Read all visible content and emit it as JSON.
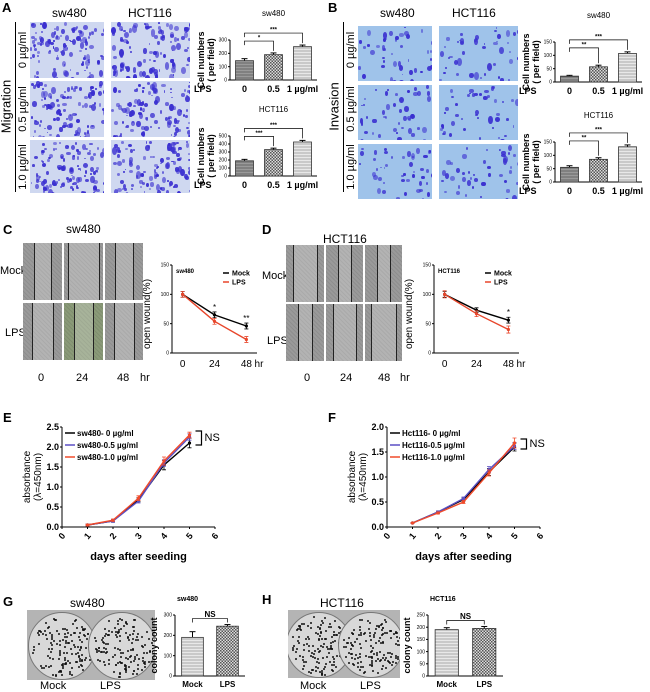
{
  "panels": {
    "A": {
      "letter": "A",
      "col1": "sw480",
      "col2": "HCT116",
      "side": "Migration",
      "rows": [
        "0 µg/ml",
        "0.5 µg/ml",
        "1.0 µg/ml"
      ]
    },
    "B": {
      "letter": "B",
      "col1": "sw480",
      "col2": "HCT116",
      "side": "Invasion",
      "rows": [
        "0 µg/ml",
        "0.5 µg/ml",
        "1.0 µg/ml"
      ]
    },
    "C": {
      "letter": "C",
      "title": "sw480",
      "rows": [
        "Mock",
        "LPS"
      ],
      "times": [
        "0",
        "24",
        "48",
        "hr"
      ]
    },
    "D": {
      "letter": "D",
      "title": "HCT116",
      "rows": [
        "Mock",
        "LPS"
      ],
      "times": [
        "0",
        "24",
        "48",
        "hr"
      ]
    },
    "E": {
      "letter": "E"
    },
    "F": {
      "letter": "F"
    },
    "G": {
      "letter": "G",
      "title": "sw480",
      "labels": [
        "Mock",
        "LPS"
      ]
    },
    "H": {
      "letter": "H",
      "title": "HCT116",
      "labels": [
        "Mock",
        "LPS"
      ]
    }
  },
  "colors": {
    "mock": "#000000",
    "lps": "#e8462b",
    "blue": "#5b4fc4",
    "red": "#f04a2a",
    "stain": "#3a2fd0"
  },
  "chart_data": [
    {
      "id": "A1",
      "type": "bar",
      "title": "sw480",
      "ylabel": [
        "Cell numbers",
        "( per field)"
      ],
      "xprefix": "LPS",
      "categories": [
        "0",
        "0.5",
        "1 µg/ml"
      ],
      "values": [
        145,
        190,
        250
      ],
      "errors": [
        15,
        13,
        12
      ],
      "ylim": [
        0,
        300
      ],
      "yticks": [
        0,
        100,
        200,
        300
      ],
      "sig": [
        {
          "from": 0,
          "to": 1,
          "label": "*"
        },
        {
          "from": 0,
          "to": 2,
          "label": "***"
        }
      ]
    },
    {
      "id": "A2",
      "type": "bar",
      "title": "HCT116",
      "ylabel": [
        "Cell numbers",
        "( per field)"
      ],
      "xprefix": "LPS",
      "categories": [
        "0",
        "0.5",
        "1 µg/ml"
      ],
      "values": [
        190,
        330,
        425
      ],
      "errors": [
        18,
        18,
        20
      ],
      "ylim": [
        0,
        500
      ],
      "yticks": [
        0,
        100,
        200,
        300,
        400,
        500
      ],
      "sig": [
        {
          "from": 0,
          "to": 1,
          "label": "***"
        },
        {
          "from": 0,
          "to": 2,
          "label": "***"
        }
      ]
    },
    {
      "id": "B1",
      "type": "bar",
      "title": "sw480",
      "ylabel": [
        "Cell numbers",
        "( per field)"
      ],
      "xprefix": "LPS",
      "categories": [
        "0",
        "0.5",
        "1 µg/ml"
      ],
      "values": [
        22,
        57,
        107
      ],
      "errors": [
        3,
        6,
        6
      ],
      "ylim": [
        0,
        150
      ],
      "yticks": [
        0,
        50,
        100,
        150
      ],
      "sig": [
        {
          "from": 0,
          "to": 1,
          "label": "**"
        },
        {
          "from": 0,
          "to": 2,
          "label": "***"
        }
      ]
    },
    {
      "id": "B2",
      "type": "bar",
      "title": "HCT116",
      "ylabel": [
        "Cell numbers",
        "( per field)"
      ],
      "xprefix": "LPS",
      "categories": [
        "0",
        "0.5",
        "1 µg/ml"
      ],
      "values": [
        55,
        85,
        132
      ],
      "errors": [
        6,
        6,
        7
      ],
      "ylim": [
        0,
        150
      ],
      "yticks": [
        0,
        50,
        100,
        150
      ],
      "sig": [
        {
          "from": 0,
          "to": 1,
          "label": "**"
        },
        {
          "from": 0,
          "to": 2,
          "label": "***"
        }
      ]
    },
    {
      "id": "C1",
      "type": "line",
      "title": "sw480",
      "ylabel": "open wound(%)",
      "x": [
        0,
        24,
        48
      ],
      "xticks": [
        "0",
        "24",
        "48",
        "hr"
      ],
      "ylim": [
        0,
        150
      ],
      "yticks": [
        0,
        50,
        100,
        150
      ],
      "series": [
        {
          "name": "Mock",
          "values": [
            100,
            65,
            46
          ],
          "errors": [
            5,
            5,
            5
          ]
        },
        {
          "name": "LPS",
          "values": [
            100,
            54,
            23
          ],
          "errors": [
            5,
            5,
            5
          ]
        }
      ],
      "sig": [
        {
          "x": 24,
          "label": "*"
        },
        {
          "x": 48,
          "label": "**"
        }
      ]
    },
    {
      "id": "D1",
      "type": "line",
      "title": "HCT116",
      "ylabel": "open wound(%)",
      "x": [
        0,
        24,
        48
      ],
      "xticks": [
        "0",
        "24",
        "48",
        "hr"
      ],
      "ylim": [
        0,
        150
      ],
      "yticks": [
        0,
        50,
        100,
        150
      ],
      "series": [
        {
          "name": "Mock",
          "values": [
            100,
            73,
            56
          ],
          "errors": [
            5,
            4,
            5
          ]
        },
        {
          "name": "LPS",
          "values": [
            100,
            67,
            40
          ],
          "errors": [
            6,
            5,
            6
          ]
        }
      ],
      "sig": [
        {
          "x": 48,
          "label": "*"
        }
      ]
    },
    {
      "id": "E1",
      "type": "line",
      "xlabel": "days after seeding",
      "ylabel": [
        "absorbance",
        "(λ=450nm)"
      ],
      "x": [
        1,
        2,
        3,
        4,
        5
      ],
      "xlim": [
        0,
        6
      ],
      "ylim": [
        0,
        2.5
      ],
      "yticks": [
        0,
        0.5,
        1.0,
        1.5,
        2.0,
        2.5
      ],
      "xticks": [
        0,
        1,
        2,
        3,
        4,
        5,
        6
      ],
      "annotation": "NS",
      "series": [
        {
          "name": "sw480- 0 µg/ml",
          "values": [
            0.05,
            0.15,
            0.68,
            1.55,
            2.1
          ],
          "errors": [
            0.02,
            0.03,
            0.05,
            0.12,
            0.12
          ]
        },
        {
          "name": "sw480-0.5 µg/ml",
          "values": [
            0.05,
            0.15,
            0.65,
            1.6,
            2.25
          ],
          "errors": [
            0.02,
            0.03,
            0.05,
            0.08,
            0.08
          ]
        },
        {
          "name": "sw480-1.0 µg/ml",
          "values": [
            0.05,
            0.17,
            0.72,
            1.65,
            2.3
          ],
          "errors": [
            0.02,
            0.03,
            0.06,
            0.1,
            0.07
          ]
        }
      ]
    },
    {
      "id": "F1",
      "type": "line",
      "xlabel": "days after seeding",
      "ylabel": [
        "absorbance",
        "(λ=450nm)"
      ],
      "x": [
        1,
        2,
        3,
        4,
        5
      ],
      "xlim": [
        0,
        6
      ],
      "ylim": [
        0,
        2.0
      ],
      "yticks": [
        0,
        0.5,
        1.0,
        1.5,
        2.0
      ],
      "xticks": [
        0,
        1,
        2,
        3,
        4,
        5,
        6
      ],
      "annotation": "NS",
      "series": [
        {
          "name": "Hct116- 0 µg/ml",
          "values": [
            0.08,
            0.3,
            0.55,
            1.1,
            1.6
          ],
          "errors": [
            0.01,
            0.02,
            0.03,
            0.07,
            0.08
          ]
        },
        {
          "name": "Hct116-0.5 µg/ml",
          "values": [
            0.08,
            0.3,
            0.57,
            1.15,
            1.62
          ],
          "errors": [
            0.01,
            0.02,
            0.03,
            0.06,
            0.07
          ]
        },
        {
          "name": "Hct116-1.0 µg/ml",
          "values": [
            0.08,
            0.28,
            0.5,
            1.08,
            1.68
          ],
          "errors": [
            0.01,
            0.02,
            0.03,
            0.06,
            0.1
          ]
        }
      ]
    },
    {
      "id": "G1",
      "type": "bar",
      "title": "sw480",
      "ylabel": [
        "colony count"
      ],
      "categories": [
        "Mock",
        "LPS"
      ],
      "values": [
        190,
        245
      ],
      "errors": [
        28,
        8
      ],
      "ylim": [
        0,
        300
      ],
      "yticks": [
        0,
        100,
        200,
        300
      ],
      "sig": [
        {
          "from": 0,
          "to": 1,
          "label": "NS"
        }
      ]
    },
    {
      "id": "H1",
      "type": "bar",
      "title": "HCT116",
      "ylabel": [
        "colony count"
      ],
      "categories": [
        "Mock",
        "LPS"
      ],
      "values": [
        190,
        195
      ],
      "errors": [
        8,
        8
      ],
      "ylim": [
        0,
        250
      ],
      "yticks": [
        0,
        50,
        100,
        150,
        200,
        250
      ],
      "sig": [
        {
          "from": 0,
          "to": 1,
          "label": "NS"
        }
      ]
    }
  ]
}
